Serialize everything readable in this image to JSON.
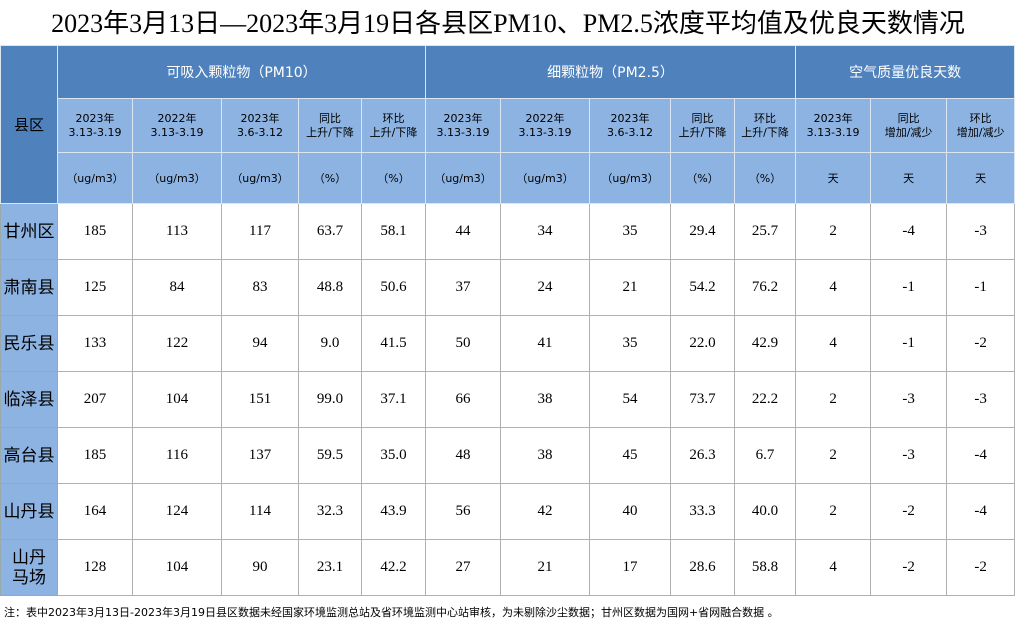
{
  "title": "2023年3月13日—2023年3月19日各县区PM10、PM2.5浓度平均值及优良天数情况",
  "header": {
    "region_label": "县区",
    "groups": [
      "可吸入颗粒物（PM10）",
      "细颗粒物（PM2.5）",
      "空气质量优良天数"
    ],
    "sub_headers": [
      [
        "2023年",
        "3.13-3.19"
      ],
      [
        "2022年",
        "3.13-3.19"
      ],
      [
        "2023年",
        "3.6-3.12"
      ],
      [
        "同比",
        "上升/下降"
      ],
      [
        "环比",
        "上升/下降"
      ],
      [
        "2023年",
        "3.13-3.19"
      ],
      [
        "2022年",
        "3.13-3.19"
      ],
      [
        "2023年",
        "3.6-3.12"
      ],
      [
        "同比",
        "上升/下降"
      ],
      [
        "环比",
        "上升/下降"
      ],
      [
        "2023年",
        "3.13-3.19"
      ],
      [
        "同比",
        "增加/减少"
      ],
      [
        "环比",
        "增加/减少"
      ]
    ],
    "units": [
      "（ug/m3）",
      "（ug/m3）",
      "（ug/m3）",
      "（%）",
      "（%）",
      "（ug/m3）",
      "（ug/m3）",
      "（ug/m3）",
      "（%）",
      "（%）",
      "天",
      "天",
      "天"
    ]
  },
  "rows": [
    {
      "name": [
        "甘州区"
      ],
      "values": [
        "185",
        "113",
        "117",
        "63.7",
        "58.1",
        "44",
        "34",
        "35",
        "29.4",
        "25.7",
        "2",
        "-4",
        "-3"
      ]
    },
    {
      "name": [
        "肃南县"
      ],
      "values": [
        "125",
        "84",
        "83",
        "48.8",
        "50.6",
        "37",
        "24",
        "21",
        "54.2",
        "76.2",
        "4",
        "-1",
        "-1"
      ]
    },
    {
      "name": [
        "民乐县"
      ],
      "values": [
        "133",
        "122",
        "94",
        "9.0",
        "41.5",
        "50",
        "41",
        "35",
        "22.0",
        "42.9",
        "4",
        "-1",
        "-2"
      ]
    },
    {
      "name": [
        "临泽县"
      ],
      "values": [
        "207",
        "104",
        "151",
        "99.0",
        "37.1",
        "66",
        "38",
        "54",
        "73.7",
        "22.2",
        "2",
        "-3",
        "-3"
      ]
    },
    {
      "name": [
        "高台县"
      ],
      "values": [
        "185",
        "116",
        "137",
        "59.5",
        "35.0",
        "48",
        "38",
        "45",
        "26.3",
        "6.7",
        "2",
        "-3",
        "-4"
      ]
    },
    {
      "name": [
        "山丹县"
      ],
      "values": [
        "164",
        "124",
        "114",
        "32.3",
        "43.9",
        "56",
        "42",
        "40",
        "33.3",
        "40.0",
        "2",
        "-2",
        "-4"
      ]
    },
    {
      "name": [
        "山丹",
        "马场"
      ],
      "values": [
        "128",
        "104",
        "90",
        "23.1",
        "42.2",
        "27",
        "21",
        "17",
        "28.6",
        "58.8",
        "4",
        "-2",
        "-2"
      ]
    }
  ],
  "footer": "注：表中2023年3月13日-2023年3月19日县区数据未经国家环境监测总站及省环境监测中心站审核，为未剔除沙尘数据；甘州区数据为国网+省网融合数据 。"
}
